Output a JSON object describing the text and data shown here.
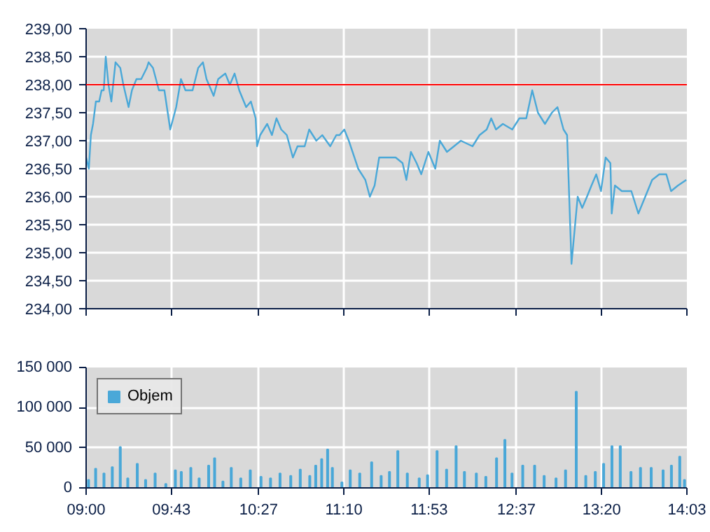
{
  "chart_data": [
    {
      "type": "line",
      "grid": true,
      "tick_labels": "y",
      "xlim": [
        9,
        14.05
      ],
      "xticks": [
        {
          "value": 9,
          "label": null
        },
        {
          "value": 9.7167,
          "label": null
        },
        {
          "value": 10.45,
          "label": null
        },
        {
          "value": 11.1667,
          "label": null
        },
        {
          "value": 11.8833,
          "label": null
        },
        {
          "value": 12.6167,
          "label": null
        },
        {
          "value": 13.3333,
          "label": null
        },
        {
          "value": 14.05,
          "label": null
        }
      ],
      "ylim": [
        234,
        239
      ],
      "yticks": [
        {
          "value": 234,
          "label": "234,00"
        },
        {
          "value": 234.5,
          "label": "234,50"
        },
        {
          "value": 235,
          "label": "235,00"
        },
        {
          "value": 235.5,
          "label": "235,50"
        },
        {
          "value": 236,
          "label": "236,00"
        },
        {
          "value": 236.5,
          "label": "236,50"
        },
        {
          "value": 237,
          "label": "237,00"
        },
        {
          "value": 237.5,
          "label": "237,50"
        },
        {
          "value": 238,
          "label": "238,00"
        },
        {
          "value": 238.5,
          "label": "238,50"
        },
        {
          "value": 239,
          "label": "239,00"
        }
      ],
      "ref_lines": [
        {
          "axis": "y",
          "value": 238,
          "color": "#ff0000"
        }
      ],
      "series": [
        {
          "color": "#4aa8d8",
          "x": [
            9.0,
            9.023,
            9.04,
            9.058,
            9.082,
            9.11,
            9.13,
            9.148,
            9.165,
            9.188,
            9.212,
            9.247,
            9.287,
            9.313,
            9.357,
            9.385,
            9.423,
            9.463,
            9.51,
            9.525,
            9.562,
            9.612,
            9.658,
            9.707,
            9.757,
            9.797,
            9.835,
            9.895,
            9.942,
            9.982,
            10.012,
            10.072,
            10.11,
            10.17,
            10.208,
            10.248,
            10.287,
            10.345,
            10.385,
            10.425,
            10.437,
            10.463,
            10.522,
            10.562,
            10.6,
            10.64,
            10.687,
            10.738,
            10.777,
            10.837,
            10.875,
            10.935,
            10.985,
            11.052,
            11.103,
            11.13,
            11.17,
            11.208,
            11.287,
            11.347,
            11.385,
            11.425,
            11.463,
            11.523,
            11.602,
            11.66,
            11.692,
            11.73,
            11.778,
            11.817,
            11.877,
            11.935,
            11.973,
            12.033,
            12.092,
            12.15,
            12.248,
            12.307,
            12.367,
            12.405,
            12.445,
            12.503,
            12.582,
            12.642,
            12.7,
            12.75,
            12.798,
            12.857,
            12.915,
            12.962,
            13.013,
            13.043,
            13.08,
            13.132,
            13.17,
            13.21,
            13.248,
            13.288,
            13.328,
            13.367,
            13.407,
            13.418,
            13.445,
            13.503,
            13.583,
            13.642,
            13.7,
            13.758,
            13.818,
            13.877,
            13.917,
            13.975,
            14.045
          ],
          "values": [
            236.7,
            236.5,
            237.1,
            237.3,
            237.7,
            237.7,
            237.9,
            237.9,
            238.5,
            238.0,
            237.7,
            238.4,
            238.3,
            238.0,
            237.6,
            237.9,
            238.1,
            238.1,
            238.3,
            238.4,
            238.3,
            237.9,
            237.9,
            237.2,
            237.6,
            238.1,
            237.9,
            237.9,
            238.3,
            238.4,
            238.1,
            237.8,
            238.1,
            238.2,
            238.0,
            238.2,
            237.9,
            237.6,
            237.7,
            237.4,
            236.9,
            237.1,
            237.3,
            237.1,
            237.4,
            237.2,
            237.1,
            236.7,
            236.9,
            236.9,
            237.2,
            237.0,
            237.1,
            236.9,
            237.1,
            237.1,
            237.2,
            237.0,
            236.5,
            236.3,
            236.0,
            236.2,
            236.7,
            236.7,
            236.7,
            236.6,
            236.3,
            236.8,
            236.6,
            236.4,
            236.8,
            236.5,
            237.0,
            236.8,
            236.9,
            237.0,
            236.9,
            237.1,
            237.2,
            237.4,
            237.2,
            237.3,
            237.2,
            237.4,
            237.4,
            237.9,
            237.5,
            237.3,
            237.5,
            237.6,
            237.2,
            237.1,
            234.8,
            236.0,
            235.8,
            236.0,
            236.2,
            236.4,
            236.1,
            236.7,
            236.6,
            235.7,
            236.2,
            236.1,
            236.1,
            235.7,
            236.0,
            236.3,
            236.4,
            236.4,
            236.1,
            236.2,
            236.3
          ]
        }
      ]
    },
    {
      "type": "bar",
      "grid": true,
      "legend": "top left",
      "xlim": [
        9,
        14.05
      ],
      "xticks": [
        {
          "value": 9,
          "label": "09:00"
        },
        {
          "value": 9.7167,
          "label": "09:43"
        },
        {
          "value": 10.45,
          "label": "10:27"
        },
        {
          "value": 11.1667,
          "label": "11:10"
        },
        {
          "value": 11.8833,
          "label": "11:53"
        },
        {
          "value": 12.6167,
          "label": "12:37"
        },
        {
          "value": 13.3333,
          "label": "13:20"
        },
        {
          "value": 14.05,
          "label": "14:03"
        }
      ],
      "ylim": [
        0,
        150000
      ],
      "yticks": [
        {
          "value": 0,
          "label": "0"
        },
        {
          "value": 50000,
          "label": "50 000"
        },
        {
          "value": 100000,
          "label": "100 000"
        },
        {
          "value": 150000,
          "label": "150 000"
        }
      ],
      "x": [
        9.02,
        9.08,
        9.15,
        9.22,
        9.287,
        9.35,
        9.43,
        9.5,
        9.58,
        9.67,
        9.75,
        9.8,
        9.88,
        9.95,
        10.03,
        10.08,
        10.15,
        10.22,
        10.3,
        10.38,
        10.47,
        10.55,
        10.63,
        10.72,
        10.8,
        10.88,
        10.93,
        10.98,
        11.03,
        11.07,
        11.15,
        11.22,
        11.3,
        11.4,
        11.48,
        11.55,
        11.62,
        11.7,
        11.8,
        11.87,
        11.95,
        12.03,
        12.11,
        12.18,
        12.28,
        12.36,
        12.45,
        12.52,
        12.58,
        12.67,
        12.77,
        12.85,
        12.95,
        13.03,
        13.12,
        13.2,
        13.28,
        13.35,
        13.42,
        13.49,
        13.58,
        13.66,
        13.75,
        13.85,
        13.92,
        13.99,
        14.03
      ],
      "series": [
        {
          "name": "Objem",
          "color": "#4aa8d8",
          "values": [
            10000,
            24000,
            18000,
            26000,
            51000,
            12000,
            30000,
            10000,
            18000,
            5000,
            22000,
            20000,
            25000,
            12000,
            28000,
            37000,
            8000,
            25000,
            12000,
            22000,
            14000,
            12000,
            18000,
            15000,
            23000,
            15000,
            28000,
            36000,
            48000,
            25000,
            7000,
            22000,
            18000,
            32000,
            15000,
            20000,
            46000,
            18000,
            12000,
            16000,
            46000,
            23000,
            52000,
            20000,
            18000,
            14000,
            37000,
            60000,
            18000,
            28000,
            28000,
            15000,
            12000,
            22000,
            120000,
            15000,
            20000,
            30000,
            52000,
            52000,
            20000,
            25000,
            25000,
            22000,
            28000,
            39000,
            10000
          ]
        }
      ]
    }
  ]
}
